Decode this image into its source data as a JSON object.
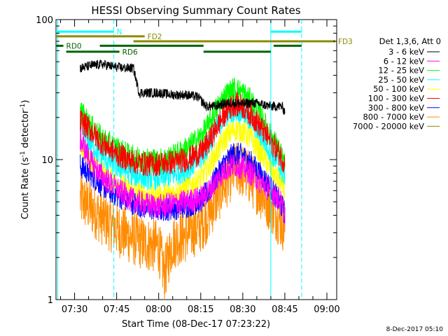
{
  "chart_data": {
    "type": "line",
    "title": "HESSI Observing Summary Count Rates",
    "xlabel": "Start Time (08-Dec-17 07:23:22)",
    "ylabel": "Count Rate (s⁻¹ detector⁻¹)",
    "ylabel_main": "Count Rate (s",
    "ylabel_sup1": "-1",
    "ylabel_mid": " detector",
    "ylabel_sup2": "-1",
    "ylabel_end": ")",
    "yscale": "log",
    "ylim": [
      1,
      100
    ],
    "xlim": [
      "07:23:22",
      "09:03:30"
    ],
    "x_ticks": [
      "07:30",
      "07:45",
      "08:00",
      "08:15",
      "08:30",
      "08:45",
      "09:00"
    ],
    "y_ticks": [
      "1",
      "10",
      "100"
    ],
    "legend_title": "Det 1,3,6, Att 0",
    "legend_position": "right",
    "series": [
      {
        "name": "3 - 6 keV",
        "color": "#000000",
        "points": [
          [
            "07:32",
            45
          ],
          [
            "07:36",
            47
          ],
          [
            "07:40",
            48
          ],
          [
            "07:44",
            46
          ],
          [
            "07:48",
            45
          ],
          [
            "07:51",
            45
          ],
          [
            "07:53",
            30
          ],
          [
            "07:56",
            30
          ],
          [
            "08:00",
            30
          ],
          [
            "08:05",
            29
          ],
          [
            "08:10",
            29
          ],
          [
            "08:14",
            28
          ],
          [
            "08:17",
            24
          ],
          [
            "08:20",
            24
          ],
          [
            "08:23",
            25
          ],
          [
            "08:26",
            25.5
          ],
          [
            "08:30",
            25
          ],
          [
            "08:33",
            25.5
          ],
          [
            "08:36",
            25
          ],
          [
            "08:40",
            24
          ],
          [
            "08:42",
            24
          ],
          [
            "08:44",
            24
          ],
          [
            "08:45",
            22
          ]
        ]
      },
      {
        "name": "6 - 12 keV",
        "color": "#ff00ff",
        "points": [
          [
            "07:32",
            14
          ],
          [
            "07:36",
            9.5
          ],
          [
            "07:40",
            7.5
          ],
          [
            "07:45",
            6.2
          ],
          [
            "07:50",
            5.2
          ],
          [
            "07:55",
            4.8
          ],
          [
            "08:00",
            4.6
          ],
          [
            "08:05",
            4.8
          ],
          [
            "08:10",
            5
          ],
          [
            "08:15",
            5.3
          ],
          [
            "08:18",
            6
          ],
          [
            "08:21",
            7.3
          ],
          [
            "08:24",
            8.6
          ],
          [
            "08:27",
            9.2
          ],
          [
            "08:30",
            8.8
          ],
          [
            "08:33",
            8
          ],
          [
            "08:36",
            7
          ],
          [
            "08:40",
            6
          ],
          [
            "08:43",
            5.2
          ],
          [
            "08:45",
            4.2
          ]
        ]
      },
      {
        "name": "12 - 25 keV",
        "color": "#00ff00",
        "points": [
          [
            "07:32",
            22
          ],
          [
            "07:36",
            17
          ],
          [
            "07:40",
            14
          ],
          [
            "07:45",
            12
          ],
          [
            "07:50",
            10.5
          ],
          [
            "07:55",
            10
          ],
          [
            "08:00",
            9.8
          ],
          [
            "08:05",
            10.5
          ],
          [
            "08:10",
            12
          ],
          [
            "08:15",
            14.5
          ],
          [
            "08:18",
            18
          ],
          [
            "08:21",
            24
          ],
          [
            "08:24",
            29
          ],
          [
            "08:27",
            32
          ],
          [
            "08:30",
            30
          ],
          [
            "08:33",
            26
          ],
          [
            "08:36",
            21
          ],
          [
            "08:40",
            15
          ],
          [
            "08:43",
            11.5
          ],
          [
            "08:45",
            9
          ]
        ]
      },
      {
        "name": "25 - 50 keV",
        "color": "#00ffff",
        "points": [
          [
            "07:32",
            17
          ],
          [
            "07:36",
            13
          ],
          [
            "07:40",
            10.5
          ],
          [
            "07:45",
            9
          ],
          [
            "07:50",
            8
          ],
          [
            "07:55",
            7.5
          ],
          [
            "08:00",
            7.4
          ],
          [
            "08:05",
            7.8
          ],
          [
            "08:10",
            8.6
          ],
          [
            "08:15",
            10.2
          ],
          [
            "08:18",
            13
          ],
          [
            "08:21",
            17
          ],
          [
            "08:24",
            21
          ],
          [
            "08:27",
            23
          ],
          [
            "08:30",
            22
          ],
          [
            "08:33",
            19
          ],
          [
            "08:36",
            15.5
          ],
          [
            "08:40",
            11.5
          ],
          [
            "08:43",
            9
          ],
          [
            "08:45",
            7.5
          ]
        ]
      },
      {
        "name": "50 - 100 keV",
        "color": "#ffff00",
        "points": [
          [
            "07:32",
            13
          ],
          [
            "07:36",
            10
          ],
          [
            "07:40",
            8
          ],
          [
            "07:45",
            6.8
          ],
          [
            "07:50",
            6
          ],
          [
            "07:55",
            5.6
          ],
          [
            "08:00",
            5.5
          ],
          [
            "08:05",
            5.8
          ],
          [
            "08:10",
            6.3
          ],
          [
            "08:15",
            7.3
          ],
          [
            "08:18",
            9
          ],
          [
            "08:21",
            11.5
          ],
          [
            "08:24",
            14.5
          ],
          [
            "08:27",
            16.5
          ],
          [
            "08:30",
            16
          ],
          [
            "08:33",
            14
          ],
          [
            "08:36",
            11.5
          ],
          [
            "08:40",
            8.7
          ],
          [
            "08:43",
            7
          ],
          [
            "08:45",
            6
          ]
        ]
      },
      {
        "name": "100 - 300 keV",
        "color": "#ff0000",
        "points": [
          [
            "07:32",
            19
          ],
          [
            "07:36",
            16
          ],
          [
            "07:40",
            13
          ],
          [
            "07:45",
            11
          ],
          [
            "07:50",
            9.8
          ],
          [
            "07:55",
            9.3
          ],
          [
            "08:00",
            9.3
          ],
          [
            "08:05",
            9.6
          ],
          [
            "08:10",
            10
          ],
          [
            "08:15",
            11.2
          ],
          [
            "08:18",
            13.5
          ],
          [
            "08:21",
            17.5
          ],
          [
            "08:24",
            22
          ],
          [
            "08:27",
            25
          ],
          [
            "08:30",
            24
          ],
          [
            "08:33",
            21
          ],
          [
            "08:36",
            17.5
          ],
          [
            "08:40",
            13.5
          ],
          [
            "08:43",
            11
          ],
          [
            "08:45",
            9.5
          ]
        ]
      },
      {
        "name": "300 - 800 keV",
        "color": "#0000ff",
        "points": [
          [
            "07:32",
            9
          ],
          [
            "07:36",
            7.8
          ],
          [
            "07:40",
            6.5
          ],
          [
            "07:45",
            5.6
          ],
          [
            "07:50",
            5
          ],
          [
            "07:55",
            4.6
          ],
          [
            "08:00",
            4.4
          ],
          [
            "08:05",
            4.5
          ],
          [
            "08:10",
            4.7
          ],
          [
            "08:15",
            5.1
          ],
          [
            "08:18",
            6
          ],
          [
            "08:21",
            7.8
          ],
          [
            "08:24",
            9.7
          ],
          [
            "08:27",
            11
          ],
          [
            "08:30",
            10.6
          ],
          [
            "08:33",
            9.4
          ],
          [
            "08:36",
            8
          ],
          [
            "08:40",
            6.3
          ],
          [
            "08:43",
            5
          ],
          [
            "08:45",
            4.2
          ]
        ]
      },
      {
        "name": "800 - 7000 keV",
        "color": "#ff8c00",
        "points": [
          [
            "07:32",
            5.2
          ],
          [
            "07:36",
            4.5
          ],
          [
            "07:40",
            3.8
          ],
          [
            "07:45",
            3.2
          ],
          [
            "07:50",
            2.8
          ],
          [
            "07:55",
            2.5
          ],
          [
            "08:00",
            2.4
          ],
          [
            "08:02",
            1.5
          ],
          [
            "08:05",
            2.6
          ],
          [
            "08:10",
            2.9
          ],
          [
            "08:15",
            3.4
          ],
          [
            "08:18",
            4.2
          ],
          [
            "08:21",
            5.5
          ],
          [
            "08:24",
            7
          ],
          [
            "08:27",
            8.5
          ],
          [
            "08:30",
            8.3
          ],
          [
            "08:33",
            7.2
          ],
          [
            "08:36",
            6
          ],
          [
            "08:40",
            4.7
          ],
          [
            "08:43",
            3.8
          ],
          [
            "08:45",
            3.3
          ]
        ]
      },
      {
        "name": "7000 - 20000 keV",
        "color": "#8b8b00",
        "points": []
      }
    ],
    "flag_bars": [
      {
        "label": "N",
        "color": "#00ffff",
        "segments": [
          [
            "07:23:22",
            "07:44"
          ],
          [
            "08:40",
            "08:51"
          ]
        ],
        "level": 82
      },
      {
        "label": "FD2",
        "color": "#8b8b00",
        "segments": [
          [
            "07:23:22",
            "07:55"
          ]
        ],
        "level": 76
      },
      {
        "label": "FD3",
        "color": "#8b8b00",
        "segments": [
          [
            "07:51",
            "09:03"
          ]
        ],
        "level": 70
      },
      {
        "label": "RD0",
        "color": "#006400",
        "segments": [
          [
            "07:23:22",
            "07:26"
          ],
          [
            "07:39",
            "08:16"
          ],
          [
            "08:41",
            "08:51"
          ]
        ],
        "level": 65
      },
      {
        "label": "RD6",
        "color": "#006400",
        "segments": [
          [
            "07:27",
            "07:46"
          ],
          [
            "08:16",
            "08:40"
          ]
        ],
        "level": 59
      }
    ],
    "vlines": [
      {
        "x": "07:24",
        "color": "#00ffff",
        "style": "solid"
      },
      {
        "x": "07:44",
        "color": "#00ffff",
        "style": "dashed"
      },
      {
        "x": "08:40",
        "color": "#00ffff",
        "style": "solid"
      },
      {
        "x": "08:51",
        "color": "#00ffff",
        "style": "dashed"
      }
    ]
  },
  "footer": {
    "timestamp": "8-Dec-2017 05:10"
  }
}
